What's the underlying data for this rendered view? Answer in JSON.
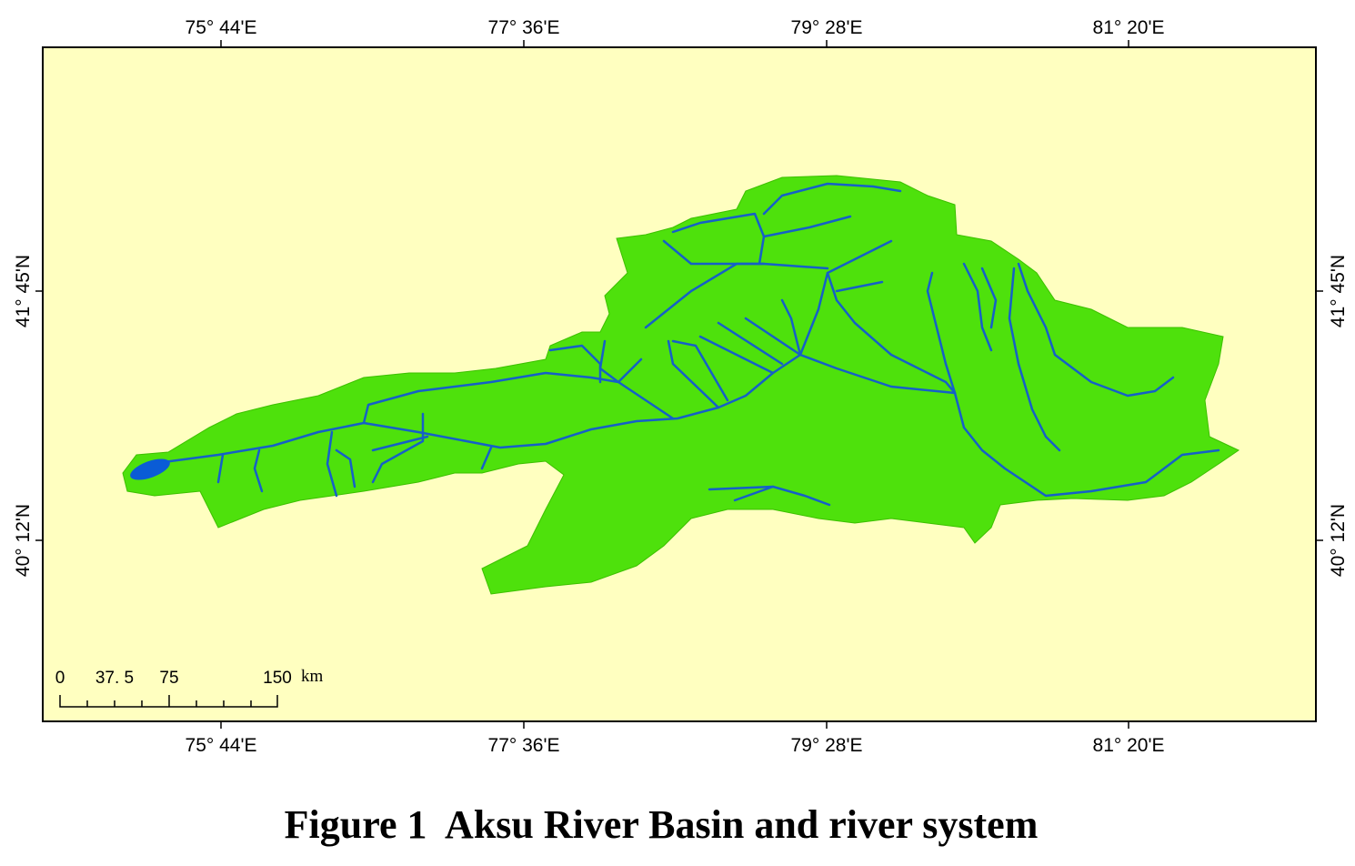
{
  "map": {
    "top_labels": [
      "75° 44'E",
      "77° 36'E",
      "79° 28'E",
      "81° 20'E"
    ],
    "bottom_labels": [
      "75° 44'E",
      "77° 36'E",
      "79° 28'E",
      "81° 20'E"
    ],
    "left_labels": [
      "41° 45'N",
      "40° 12'N"
    ],
    "right_labels": [
      "41° 45'N",
      "40° 12'N"
    ],
    "scale": {
      "labels": [
        "0",
        "37. 5",
        "75",
        "150"
      ],
      "unit": "km"
    },
    "caption": "Figure 1  Aksu River Basin and river system"
  }
}
